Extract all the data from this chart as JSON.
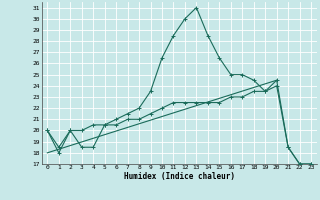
{
  "xlabel": "Humidex (Indice chaleur)",
  "bg_color": "#c8e8e8",
  "grid_color": "#ffffff",
  "line_color": "#1a6b5a",
  "xlim": [
    -0.5,
    23.5
  ],
  "ylim": [
    17,
    31.5
  ],
  "yticks": [
    17,
    18,
    19,
    20,
    21,
    22,
    23,
    24,
    25,
    26,
    27,
    28,
    29,
    30,
    31
  ],
  "xticks": [
    0,
    1,
    2,
    3,
    4,
    5,
    6,
    7,
    8,
    9,
    10,
    11,
    12,
    13,
    14,
    15,
    16,
    17,
    18,
    19,
    20,
    21,
    22,
    23
  ],
  "line1_x": [
    0,
    1,
    2,
    3,
    4,
    5,
    6,
    7,
    8,
    9,
    10,
    11,
    12,
    13,
    14,
    15,
    16,
    17,
    18,
    19,
    20,
    21,
    22,
    23
  ],
  "line1_y": [
    20.0,
    18.5,
    20.0,
    20.0,
    20.5,
    20.5,
    21.0,
    21.5,
    22.0,
    23.5,
    26.5,
    28.5,
    30.0,
    31.0,
    28.5,
    26.5,
    25.0,
    25.0,
    24.5,
    23.5,
    24.5,
    18.5,
    17.0,
    17.0
  ],
  "line2_x": [
    0,
    1,
    2,
    3,
    4,
    5,
    6,
    7,
    8,
    9,
    10,
    11,
    12,
    13,
    14,
    15,
    16,
    17,
    18,
    19,
    20,
    21,
    22,
    23
  ],
  "line2_y": [
    20.0,
    18.0,
    20.0,
    18.5,
    18.5,
    20.5,
    20.5,
    21.0,
    21.0,
    21.5,
    22.0,
    22.5,
    22.5,
    22.5,
    22.5,
    22.5,
    23.0,
    23.0,
    23.5,
    23.5,
    24.0,
    18.5,
    17.0,
    17.0
  ],
  "line3_x": [
    0,
    20
  ],
  "line3_y": [
    18.0,
    24.5
  ]
}
